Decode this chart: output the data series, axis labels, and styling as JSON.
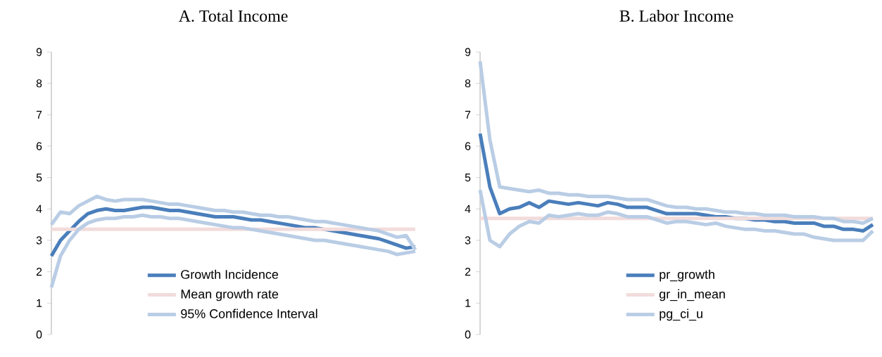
{
  "chart_data": [
    {
      "type": "line",
      "title": "A.   Total Income",
      "categories": [
        null,
        null,
        null,
        null,
        null,
        null,
        null,
        null,
        null,
        null,
        null,
        null,
        null,
        null,
        null,
        null,
        null,
        null,
        null,
        null,
        null,
        null,
        null,
        null,
        null,
        null,
        null,
        null,
        null,
        null,
        null,
        null,
        null,
        null,
        null,
        null,
        null,
        null,
        null,
        null,
        null
      ],
      "series": [
        {
          "name": "Growth Incidence",
          "color": "#4a7ebb",
          "values": [
            2.5,
            3.0,
            3.3,
            3.6,
            3.85,
            3.95,
            4.0,
            3.95,
            3.95,
            4.0,
            4.05,
            4.05,
            4.0,
            3.95,
            3.95,
            3.9,
            3.85,
            3.8,
            3.75,
            3.75,
            3.75,
            3.7,
            3.65,
            3.65,
            3.6,
            3.55,
            3.5,
            3.45,
            3.4,
            3.4,
            3.35,
            3.3,
            3.25,
            3.2,
            3.15,
            3.1,
            3.05,
            2.95,
            2.85,
            2.75,
            2.8
          ]
        },
        {
          "name": "Mean growth rate",
          "color": "#f2dcdb",
          "values": [
            3.35,
            3.35,
            3.35,
            3.35,
            3.35,
            3.35,
            3.35,
            3.35,
            3.35,
            3.35,
            3.35,
            3.35,
            3.35,
            3.35,
            3.35,
            3.35,
            3.35,
            3.35,
            3.35,
            3.35,
            3.35,
            3.35,
            3.35,
            3.35,
            3.35,
            3.35,
            3.35,
            3.35,
            3.35,
            3.35,
            3.35,
            3.35,
            3.35,
            3.35,
            3.35,
            3.35,
            3.35,
            3.35,
            3.35,
            3.35,
            3.35
          ]
        },
        {
          "name": "95% Confidence Interval",
          "color": "#b9cde5",
          "values": [
            3.5,
            3.9,
            3.85,
            4.1,
            4.25,
            4.4,
            4.3,
            4.25,
            4.3,
            4.3,
            4.3,
            4.25,
            4.2,
            4.15,
            4.15,
            4.1,
            4.05,
            4.0,
            3.95,
            3.95,
            3.9,
            3.9,
            3.85,
            3.8,
            3.8,
            3.75,
            3.75,
            3.7,
            3.65,
            3.6,
            3.6,
            3.55,
            3.5,
            3.45,
            3.4,
            3.35,
            3.3,
            3.2,
            3.1,
            3.15,
            2.7
          ]
        },
        {
          "color": "#b9cde5",
          "values": [
            1.5,
            2.5,
            3.0,
            3.35,
            3.55,
            3.65,
            3.7,
            3.7,
            3.75,
            3.75,
            3.8,
            3.75,
            3.75,
            3.7,
            3.7,
            3.65,
            3.6,
            3.55,
            3.5,
            3.45,
            3.4,
            3.4,
            3.35,
            3.3,
            3.25,
            3.2,
            3.15,
            3.1,
            3.05,
            3.0,
            3.0,
            2.95,
            2.9,
            2.85,
            2.8,
            2.75,
            2.7,
            2.65,
            2.55,
            2.6,
            2.65
          ]
        }
      ],
      "ylim": [
        0,
        9
      ],
      "yticks": [
        0,
        1,
        2,
        3,
        4,
        5,
        6,
        7,
        8,
        9
      ],
      "tick_labels": "y",
      "legend": "bottom"
    },
    {
      "type": "line",
      "title": "B.   Labor Income",
      "categories": [
        null,
        null,
        null,
        null,
        null,
        null,
        null,
        null,
        null,
        null,
        null,
        null,
        null,
        null,
        null,
        null,
        null,
        null,
        null,
        null,
        null,
        null,
        null,
        null,
        null,
        null,
        null,
        null,
        null,
        null,
        null,
        null,
        null,
        null,
        null,
        null,
        null,
        null,
        null,
        null,
        null
      ],
      "series": [
        {
          "name": "pr_growth",
          "color": "#4a7ebb",
          "values": [
            6.4,
            4.7,
            3.85,
            4.0,
            4.05,
            4.2,
            4.05,
            4.25,
            4.2,
            4.15,
            4.2,
            4.15,
            4.1,
            4.2,
            4.15,
            4.05,
            4.05,
            4.05,
            3.95,
            3.85,
            3.85,
            3.85,
            3.85,
            3.8,
            3.75,
            3.75,
            3.7,
            3.7,
            3.65,
            3.65,
            3.6,
            3.6,
            3.55,
            3.55,
            3.55,
            3.45,
            3.45,
            3.35,
            3.35,
            3.3,
            3.5
          ]
        },
        {
          "name": "gr_in_mean",
          "color": "#f2dcdb",
          "values": [
            3.7,
            3.7,
            3.7,
            3.7,
            3.7,
            3.7,
            3.7,
            3.7,
            3.7,
            3.7,
            3.7,
            3.7,
            3.7,
            3.7,
            3.7,
            3.7,
            3.7,
            3.7,
            3.7,
            3.7,
            3.7,
            3.7,
            3.7,
            3.7,
            3.7,
            3.7,
            3.7,
            3.7,
            3.7,
            3.7,
            3.7,
            3.7,
            3.7,
            3.7,
            3.7,
            3.7,
            3.7,
            3.7,
            3.7,
            3.7,
            3.7
          ]
        },
        {
          "name": "pg_ci_u",
          "color": "#b9cde5",
          "values": [
            8.7,
            6.2,
            4.7,
            4.65,
            4.6,
            4.55,
            4.6,
            4.5,
            4.5,
            4.45,
            4.45,
            4.4,
            4.4,
            4.4,
            4.35,
            4.3,
            4.3,
            4.3,
            4.2,
            4.1,
            4.05,
            4.05,
            4.0,
            4.0,
            3.95,
            3.9,
            3.9,
            3.85,
            3.85,
            3.8,
            3.8,
            3.8,
            3.75,
            3.75,
            3.75,
            3.7,
            3.7,
            3.6,
            3.6,
            3.55,
            3.7
          ]
        },
        {
          "color": "#b9cde5",
          "values": [
            4.6,
            3.0,
            2.8,
            3.2,
            3.45,
            3.6,
            3.55,
            3.8,
            3.75,
            3.8,
            3.85,
            3.8,
            3.8,
            3.9,
            3.85,
            3.75,
            3.75,
            3.75,
            3.65,
            3.55,
            3.6,
            3.6,
            3.55,
            3.5,
            3.55,
            3.45,
            3.4,
            3.35,
            3.35,
            3.3,
            3.3,
            3.25,
            3.2,
            3.2,
            3.1,
            3.05,
            3.0,
            3.0,
            3.0,
            3.0,
            3.3
          ]
        }
      ],
      "ylim": [
        0,
        9
      ],
      "yticks": [
        0,
        1,
        2,
        3,
        4,
        5,
        6,
        7,
        8,
        9
      ],
      "tick_labels": "y",
      "legend": "bottom"
    }
  ]
}
